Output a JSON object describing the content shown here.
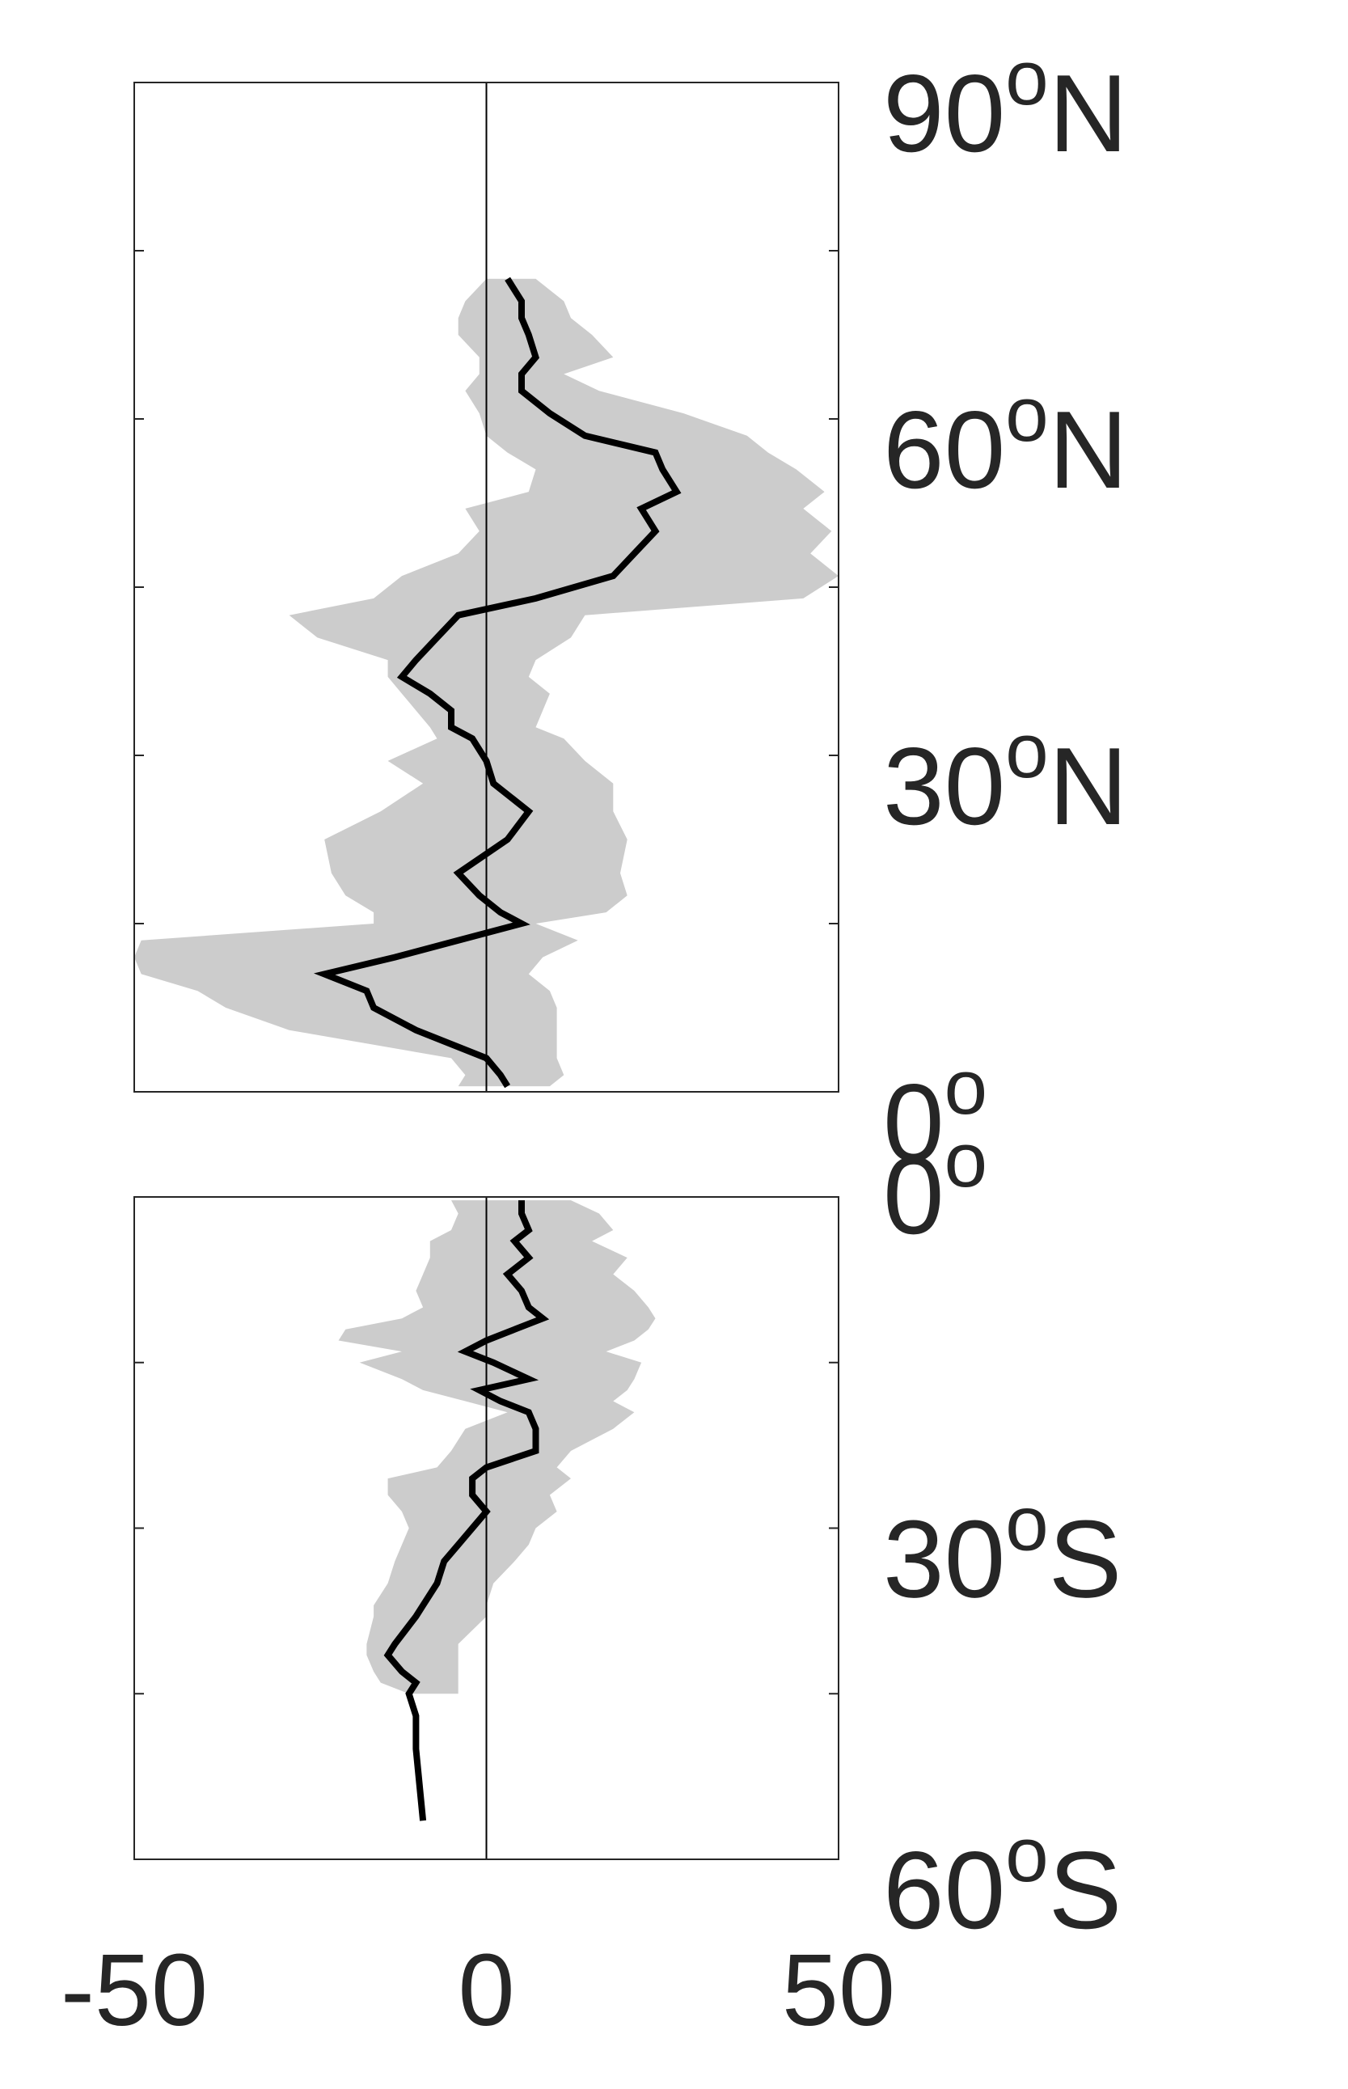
{
  "chart_data": [
    {
      "type": "line",
      "panel": "north",
      "title": "",
      "xlabel": "",
      "ylabel": "",
      "xlim": [
        -50,
        50
      ],
      "ylim": [
        0,
        90
      ],
      "y_tick_labels": [
        {
          "lat": 90,
          "deg": "90",
          "hemi": "N"
        },
        {
          "lat": 60,
          "deg": "60",
          "hemi": "N"
        },
        {
          "lat": 30,
          "deg": "30",
          "hemi": "N"
        },
        {
          "lat": 0,
          "deg": "0",
          "hemi": ""
        }
      ],
      "y_minor_ticks": [
        75,
        60,
        45,
        30,
        15
      ],
      "zero_line": true,
      "line_color": "#000000",
      "band_color": "#cccccc",
      "series": [
        {
          "x": [
            3,
            5,
            5,
            6,
            7,
            5,
            5,
            9,
            14,
            24,
            25,
            27,
            22,
            24,
            21,
            18,
            7,
            -4,
            -7,
            -10,
            -12,
            -8,
            -5,
            -5,
            -2,
            0,
            1,
            6,
            3,
            -4,
            -1,
            2,
            5,
            -4,
            -13,
            -23,
            -17,
            -16,
            -10,
            0,
            2,
            3
          ],
          "y": [
            72.5,
            70.5,
            69,
            67.5,
            65.5,
            64,
            62.5,
            60.5,
            58.5,
            57,
            55.5,
            53.5,
            52,
            50,
            48,
            46,
            44,
            42.5,
            40.5,
            38.5,
            37,
            35.5,
            34,
            32.5,
            31.5,
            29.5,
            27.5,
            25,
            22.5,
            19.5,
            17.5,
            16,
            15,
            13.5,
            12,
            10.5,
            9,
            7.5,
            5.5,
            3,
            1.5,
            0.5
          ]
        }
      ],
      "band": {
        "y": [
          72.5,
          70.5,
          69,
          67.5,
          65.5,
          64,
          62.5,
          60.5,
          58.5,
          57,
          55.5,
          53.5,
          52,
          50,
          48,
          46,
          44,
          42.5,
          40.5,
          38.5,
          37,
          35.5,
          34,
          32.5,
          31.5,
          29.5,
          27.5,
          25,
          22.5,
          19.5,
          17.5,
          16,
          15,
          13.5,
          12,
          10.5,
          9,
          7.5,
          5.5,
          3,
          1.5,
          0.5
        ],
        "lower": [
          0,
          -3,
          -4,
          -4,
          -1,
          -1,
          -3,
          -1,
          0,
          3,
          7,
          6,
          -3,
          -1,
          -4,
          -12,
          -16,
          -28,
          -24,
          -14,
          -14,
          -12,
          -10,
          -8,
          -7,
          -14,
          -9,
          -15,
          -23,
          -22,
          -20,
          -16,
          -16,
          -49,
          -50,
          -49,
          -41,
          -37,
          -28,
          -5,
          -3,
          -4
        ],
        "upper": [
          7,
          11,
          12,
          15,
          18,
          11,
          16,
          28,
          37,
          40,
          44,
          48,
          45,
          49,
          46,
          50,
          45,
          14,
          12,
          7,
          6,
          9,
          8,
          7,
          11,
          14,
          18,
          18,
          20,
          19,
          20,
          17,
          7,
          13,
          8,
          6,
          9,
          10,
          10,
          10,
          11,
          9
        ]
      }
    },
    {
      "type": "line",
      "panel": "south",
      "title": "",
      "xlabel": "",
      "ylabel": "",
      "xlim": [
        -50,
        50
      ],
      "ylim": [
        -60,
        0
      ],
      "x_tick_labels": [
        "-50",
        "0",
        "50"
      ],
      "y_tick_labels": [
        {
          "lat": 0,
          "deg": "0",
          "hemi": ""
        },
        {
          "lat": -30,
          "deg": "30",
          "hemi": "S"
        },
        {
          "lat": -60,
          "deg": "60",
          "hemi": "S"
        }
      ],
      "y_minor_ticks": [
        -15,
        -30,
        -45
      ],
      "zero_line": true,
      "line_color": "#000000",
      "band_color": "#cccccc",
      "series": [
        {
          "x": [
            5,
            5,
            6,
            4,
            6,
            3,
            5,
            6,
            8,
            4,
            0,
            -3,
            1,
            6,
            -1,
            2,
            6,
            7,
            7,
            0,
            -2,
            -2,
            0,
            -2,
            -4,
            -6,
            -7,
            -9,
            -10,
            -13,
            -14,
            -12,
            -10,
            -11,
            -10,
            -10,
            -9
          ],
          "y": [
            -0.3,
            -1.5,
            -3,
            -4,
            -5.5,
            -7,
            -8.5,
            -10,
            -11,
            -12,
            -13,
            -14,
            -15,
            -16.5,
            -17.5,
            -18.5,
            -19.5,
            -21,
            -23,
            -24.5,
            -25.5,
            -27,
            -28.5,
            -30,
            -31.5,
            -33,
            -35,
            -37,
            -38,
            -40.5,
            -41.5,
            -43,
            -44,
            -45,
            -47,
            -50,
            -56.5
          ]
        }
      ],
      "band": {
        "y": [
          -0.3,
          -1.5,
          -3,
          -4,
          -5.5,
          -7,
          -8.5,
          -10,
          -11,
          -12,
          -13,
          -14,
          -15,
          -16.5,
          -17.5,
          -18.5,
          -19.5,
          -21,
          -23,
          -24.5,
          -25.5,
          -27,
          -28.5,
          -30,
          -31.5,
          -33,
          -35,
          -37,
          -38,
          -40.5,
          -41.5,
          -43,
          -44,
          -45
        ],
        "lower": [
          -5,
          -4,
          -5,
          -8,
          -8,
          -9,
          -10,
          -9,
          -12,
          -20,
          -21,
          -12,
          -18,
          -12,
          -9,
          -3,
          3,
          -3,
          -5,
          -7,
          -14,
          -14,
          -12,
          -11,
          -12,
          -13,
          -14,
          -16,
          -16,
          -17,
          -17,
          -16,
          -15,
          -11
        ],
        "upper": [
          12,
          16,
          18,
          15,
          20,
          18,
          21,
          23,
          24,
          23,
          21,
          17,
          22,
          21,
          20,
          18,
          21,
          18,
          12,
          10,
          12,
          9,
          10,
          7,
          6,
          4,
          1,
          0,
          0,
          -4,
          -4,
          -4,
          -4,
          -4
        ]
      }
    }
  ]
}
